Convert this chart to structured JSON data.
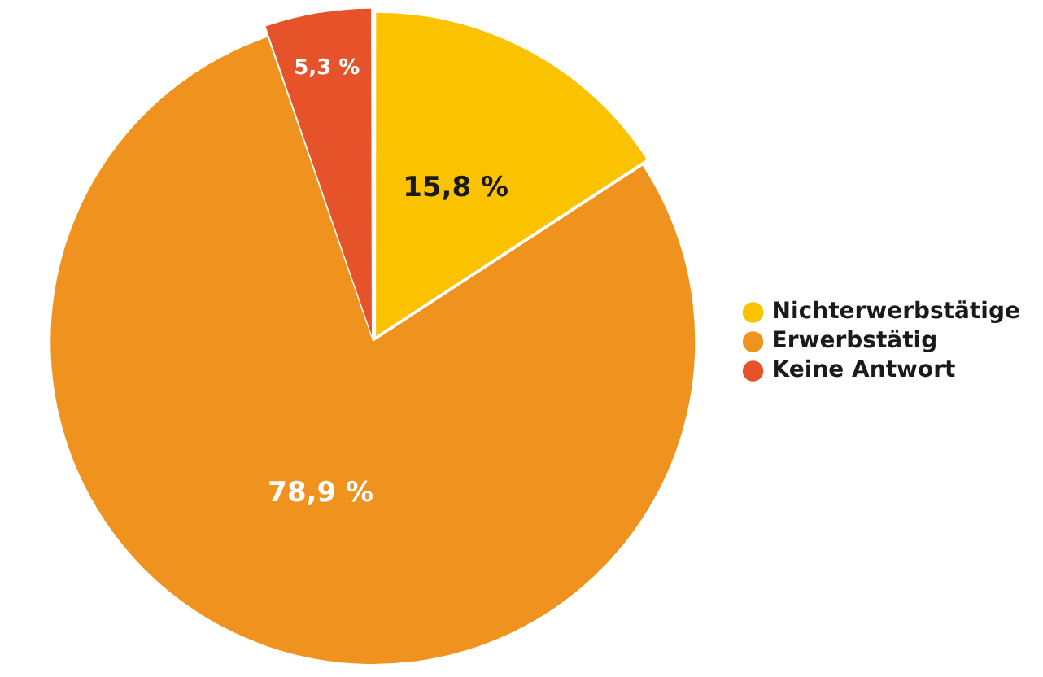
{
  "chart_data": {
    "type": "pie",
    "categories": [
      "Nichterwerbstätige",
      "Erwerbstätig",
      "Keine Antwort"
    ],
    "values": [
      15.8,
      78.9,
      5.3
    ],
    "colors": [
      "#fbc200",
      "#f0931e",
      "#e6532a"
    ],
    "value_labels": [
      "15,8 %",
      "78,9 %",
      "5,3 %"
    ],
    "legend": "right"
  }
}
